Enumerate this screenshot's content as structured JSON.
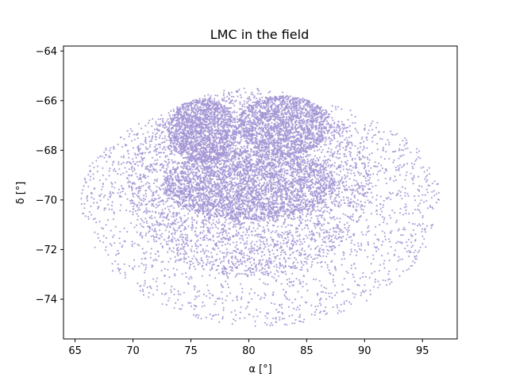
{
  "chart_data": {
    "type": "scatter",
    "title": "LMC in the field",
    "xlabel": "α [°]",
    "ylabel": "δ [°]",
    "xlim": [
      64,
      98
    ],
    "ylim": [
      -75.6,
      -63.8
    ],
    "xticks": [
      65,
      70,
      75,
      80,
      85,
      90,
      95
    ],
    "yticks": [
      -74,
      -72,
      -70,
      -68,
      -66,
      -64
    ],
    "grid": false,
    "legend": "none",
    "point_color": "#b7a8e2",
    "point_edge_color": "#8f82c4",
    "series": [
      {
        "description_regions": [
          {
            "ra_center": 81,
            "dec_center": -69.9,
            "ra_radius": 15.5,
            "dec_radius": 5.2,
            "density": "sparse-outer"
          },
          {
            "ra_center": 80,
            "dec_center": -69.3,
            "ra_radius": 10.5,
            "dec_radius": 3.8,
            "density": "medium"
          },
          {
            "ra_center": 80,
            "dec_center": -69.4,
            "ra_radius": 7.5,
            "dec_radius": 1.4,
            "density": "dense-bar"
          },
          {
            "ra_center": 76,
            "dec_center": -67.2,
            "ra_radius": 3.0,
            "dec_radius": 1.3,
            "density": "dense"
          },
          {
            "ra_center": 83,
            "dec_center": -67.0,
            "ra_radius": 4.0,
            "dec_radius": 1.2,
            "density": "dense"
          }
        ]
      }
    ]
  }
}
